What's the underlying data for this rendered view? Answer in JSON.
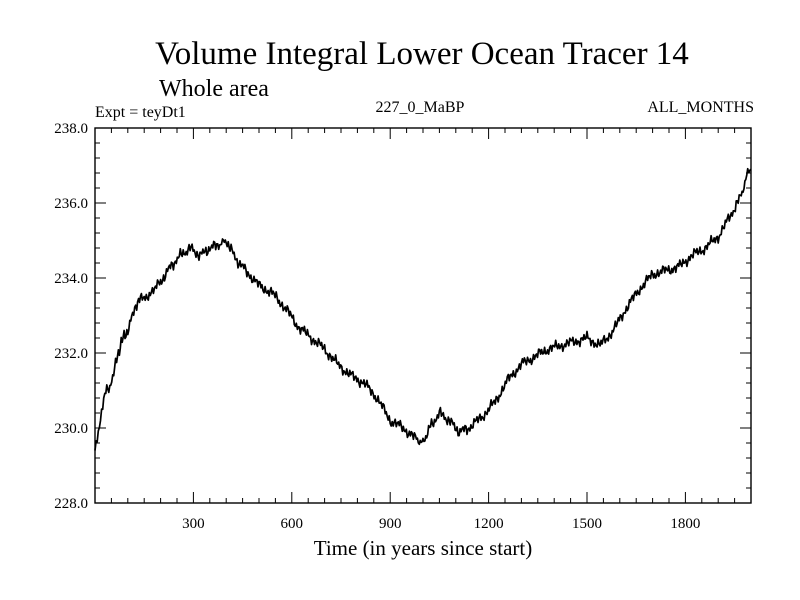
{
  "chart_data": {
    "type": "line",
    "title": "Volume Integral Lower Ocean Tracer 14",
    "subtitle": "Whole area",
    "experiment_label": "Expt = teyDt1",
    "center_label": "227_0_MaBP",
    "right_label": "ALL_MONTHS",
    "xlabel": "Time (in years since start)",
    "ylabel": "",
    "xlim": [
      0,
      2000
    ],
    "ylim": [
      228.0,
      238.0
    ],
    "x_ticks": [
      300,
      600,
      900,
      1200,
      1500,
      1800
    ],
    "x_tick_labels": [
      "300",
      "600",
      "900",
      "1200",
      "1500",
      "1800"
    ],
    "y_ticks": [
      228.0,
      230.0,
      232.0,
      234.0,
      236.0,
      238.0
    ],
    "y_tick_labels": [
      "228.0",
      "230.0",
      "232.0",
      "234.0",
      "236.0",
      "238.0"
    ],
    "series": [
      {
        "name": "Tracer 14",
        "color": "#000000",
        "x": [
          0,
          10,
          20,
          30,
          45,
          60,
          80,
          100,
          130,
          150,
          175,
          200,
          230,
          260,
          290,
          320,
          350,
          380,
          400,
          430,
          460,
          500,
          540,
          580,
          620,
          660,
          700,
          740,
          780,
          820,
          860,
          900,
          940,
          980,
          1000,
          1020,
          1050,
          1080,
          1110,
          1140,
          1180,
          1220,
          1260,
          1300,
          1340,
          1380,
          1420,
          1460,
          1500,
          1540,
          1580,
          1620,
          1660,
          1700,
          1740,
          1780,
          1820,
          1860,
          1900,
          1940,
          1970,
          1990,
          2000
        ],
        "y": [
          229.4,
          229.8,
          230.4,
          230.9,
          231.1,
          231.6,
          232.3,
          232.6,
          233.4,
          233.5,
          233.6,
          233.9,
          234.3,
          234.6,
          234.8,
          234.6,
          234.8,
          234.9,
          235.0,
          234.5,
          234.2,
          233.8,
          233.6,
          233.2,
          232.7,
          232.4,
          232.1,
          231.7,
          231.4,
          231.2,
          230.8,
          230.2,
          230.0,
          229.7,
          229.6,
          230.0,
          230.4,
          230.2,
          229.9,
          230.0,
          230.3,
          230.7,
          231.3,
          231.7,
          231.9,
          232.1,
          232.2,
          232.3,
          232.4,
          232.2,
          232.6,
          233.2,
          233.7,
          234.1,
          234.2,
          234.3,
          234.6,
          234.8,
          235.1,
          235.7,
          236.2,
          236.8,
          236.9
        ]
      }
    ]
  }
}
